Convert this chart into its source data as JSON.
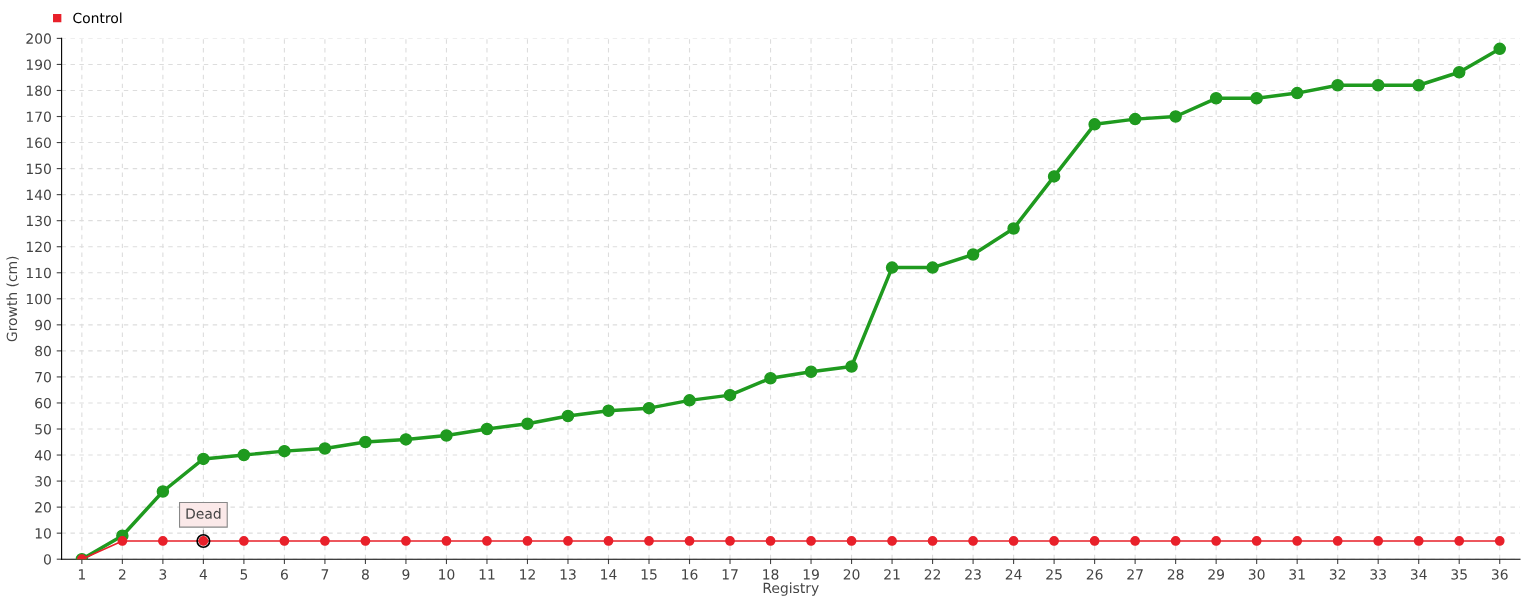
{
  "chart_data": {
    "type": "line",
    "xlabel": "Registry",
    "ylabel": "Growth (cm)",
    "categories": [
      "1",
      "2",
      "3",
      "4",
      "5",
      "6",
      "7",
      "8",
      "9",
      "10",
      "11",
      "12",
      "13",
      "14",
      "15",
      "16",
      "17",
      "18",
      "19",
      "20",
      "21",
      "22",
      "23",
      "24",
      "25",
      "26",
      "27",
      "28",
      "29",
      "30",
      "31",
      "32",
      "33",
      "34",
      "35",
      "36"
    ],
    "series": [
      {
        "color": "#1f9a1f",
        "values": [
          0,
          9,
          26,
          38.5,
          40,
          41.5,
          42.5,
          45,
          46,
          47.5,
          50,
          52,
          55,
          57,
          58,
          61,
          63,
          69.5,
          72,
          74,
          112,
          112,
          117,
          127,
          147,
          167,
          169,
          170,
          177,
          177,
          179,
          182,
          182,
          182,
          187,
          196
        ]
      },
      {
        "name": "Control",
        "color": "#e8202a",
        "values": [
          0,
          7,
          7,
          7,
          7,
          7,
          7,
          7,
          7,
          7,
          7,
          7,
          7,
          7,
          7,
          7,
          7,
          7,
          7,
          7,
          7,
          7,
          7,
          7,
          7,
          7,
          7,
          7,
          7,
          7,
          7,
          7,
          7,
          7,
          7,
          7
        ]
      }
    ],
    "ylim": [
      0,
      200
    ],
    "yticks": [
      0,
      10,
      20,
      30,
      40,
      50,
      60,
      70,
      80,
      90,
      100,
      110,
      120,
      130,
      140,
      150,
      160,
      170,
      180,
      190,
      200
    ],
    "annotations": [
      {
        "text": "Dead",
        "x": "4",
        "y": 7
      }
    ],
    "grid": true,
    "legend": "top left",
    "marker": "circle",
    "line_style": "solid"
  }
}
